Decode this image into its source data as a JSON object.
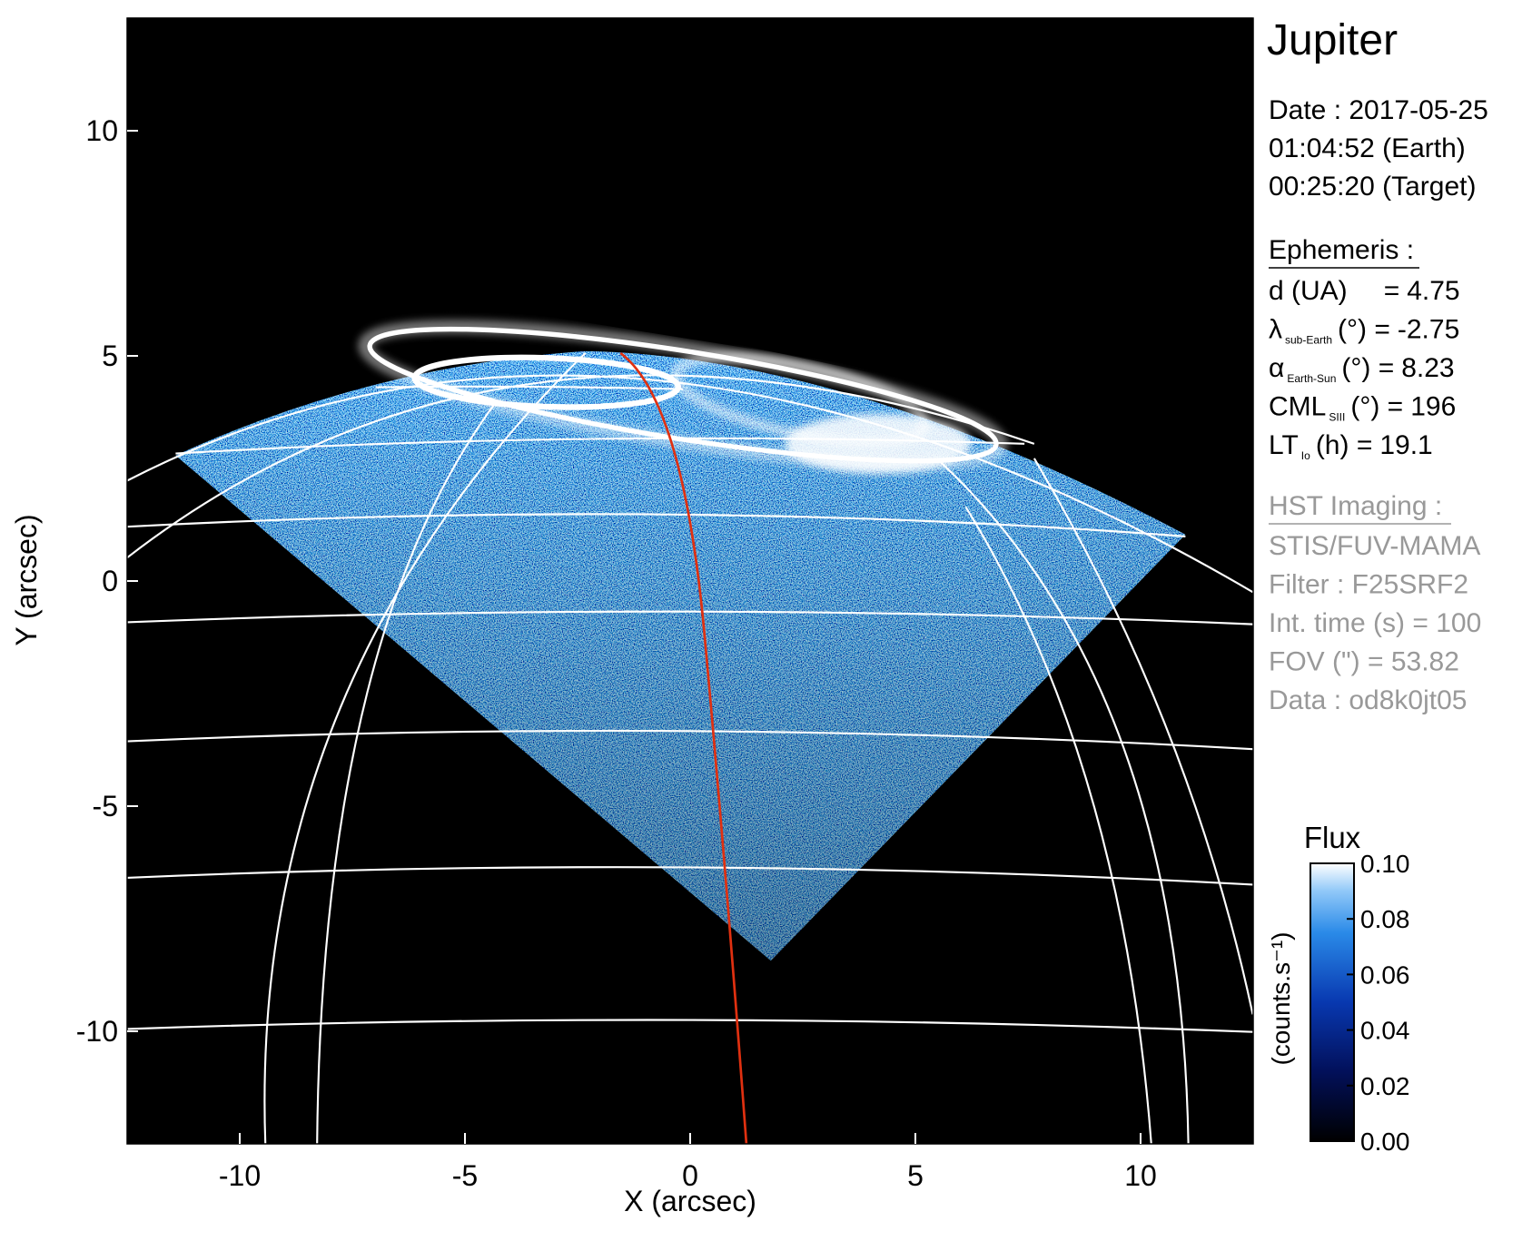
{
  "chart_data": {
    "type": "image",
    "xlabel": "X (arcsec)",
    "ylabel": "Y (arcsec)",
    "xlim": [
      -12.5,
      12.5
    ],
    "ylim": [
      -12.5,
      12.5
    ],
    "xticks": [
      -10,
      -5,
      0,
      5,
      10
    ],
    "yticks": [
      -10,
      -5,
      0,
      5,
      10
    ],
    "colorbar": {
      "title": "Flux",
      "label": "(counts.s⁻¹)",
      "lim": [
        0,
        0.1
      ],
      "ticks": [
        {
          "value": 0,
          "label": "0.00"
        },
        {
          "value": 0.02,
          "label": "0.02"
        },
        {
          "value": 0.04,
          "label": "0.04"
        },
        {
          "value": 0.06,
          "label": "0.06"
        },
        {
          "value": 0.08,
          "label": "0.08"
        },
        {
          "value": 0.1,
          "label": "0.10"
        }
      ]
    }
  },
  "panel": {
    "title": "Jupiter",
    "date_lines": [
      "Date : 2017-05-25",
      "01:04:52 (Earth)",
      "00:25:20 (Target)"
    ],
    "ephemeris_title": "Ephemeris :",
    "ephemeris": [
      {
        "symbol": "d (UA)",
        "unit": "=",
        "value": 4.75
      },
      {
        "symbol": "λ",
        "sub": "sub-Earth",
        "unit": "(°) =",
        "value": -2.75
      },
      {
        "symbol": "α",
        "sub": "Earth-Sun",
        "unit": "(°) =",
        "value": 8.23
      },
      {
        "symbol": "CML",
        "sub": "SIII",
        "unit": "(°) =",
        "value": 196
      },
      {
        "symbol": "LT",
        "sub": "Io",
        "unit": "(h) =",
        "value": 19.1
      }
    ],
    "imaging_title": "HST Imaging :",
    "imaging": [
      "STIS/FUV-MAMA",
      "Filter : F25SRF2",
      "Int. time (s) = 100",
      "FOV (\") = 53.82",
      "Data : od8k0jt05"
    ]
  }
}
